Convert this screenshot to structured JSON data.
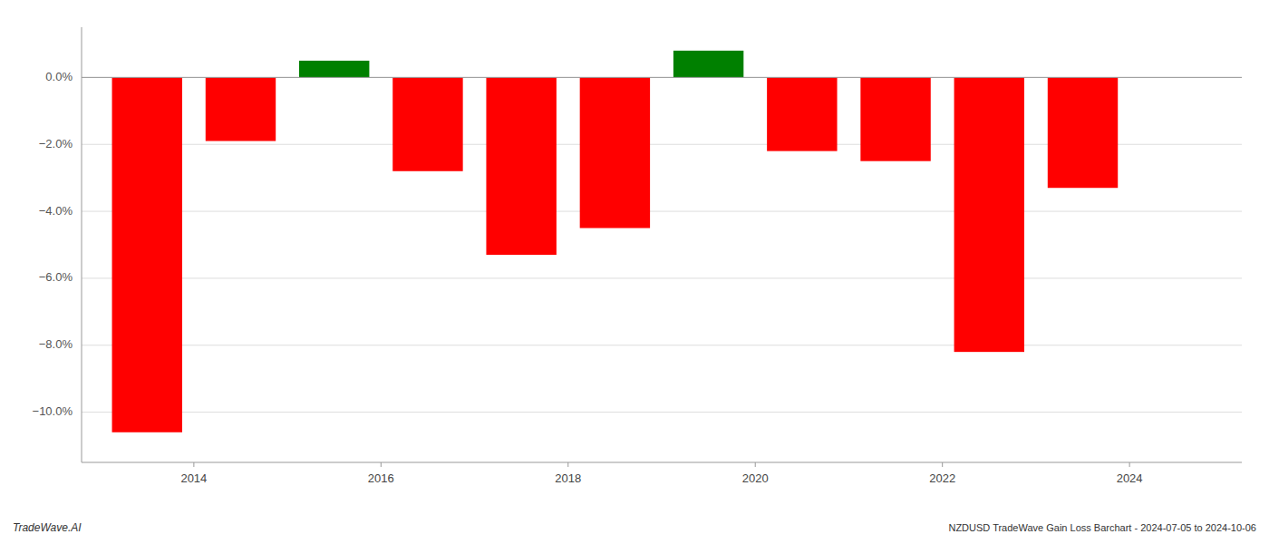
{
  "chart_data": {
    "type": "bar",
    "x": [
      2013.5,
      2014.5,
      2015.5,
      2016.5,
      2017.5,
      2018.5,
      2019.5,
      2020.5,
      2021.5,
      2022.5,
      2023.5
    ],
    "values": [
      -10.6,
      -1.9,
      0.5,
      -2.8,
      -5.3,
      -4.5,
      0.8,
      -2.2,
      -2.5,
      -8.2,
      -3.3
    ],
    "colors": [
      "#ff0000",
      "#ff0000",
      "#008000",
      "#ff0000",
      "#ff0000",
      "#ff0000",
      "#008000",
      "#ff0000",
      "#ff0000",
      "#ff0000",
      "#ff0000"
    ],
    "xlim": [
      2012.8,
      2025.2
    ],
    "xticks": [
      2014,
      2016,
      2018,
      2020,
      2022,
      2024
    ],
    "ylim": [
      -11.5,
      1.5
    ],
    "yticks": [
      {
        "value": 0.0,
        "label": "0.0%"
      },
      {
        "value": -2.0,
        "label": "−2.0%"
      },
      {
        "value": -4.0,
        "label": "−4.0%"
      },
      {
        "value": -6.0,
        "label": "−6.0%"
      },
      {
        "value": -8.0,
        "label": "−8.0%"
      },
      {
        "value": -10.0,
        "label": "−10.0%"
      }
    ],
    "grid": true,
    "annotations": [
      "TradeWave.AI",
      "NZDUSD TradeWave Gain Loss Barchart - 2024-07-05 to 2024-10-06"
    ]
  }
}
